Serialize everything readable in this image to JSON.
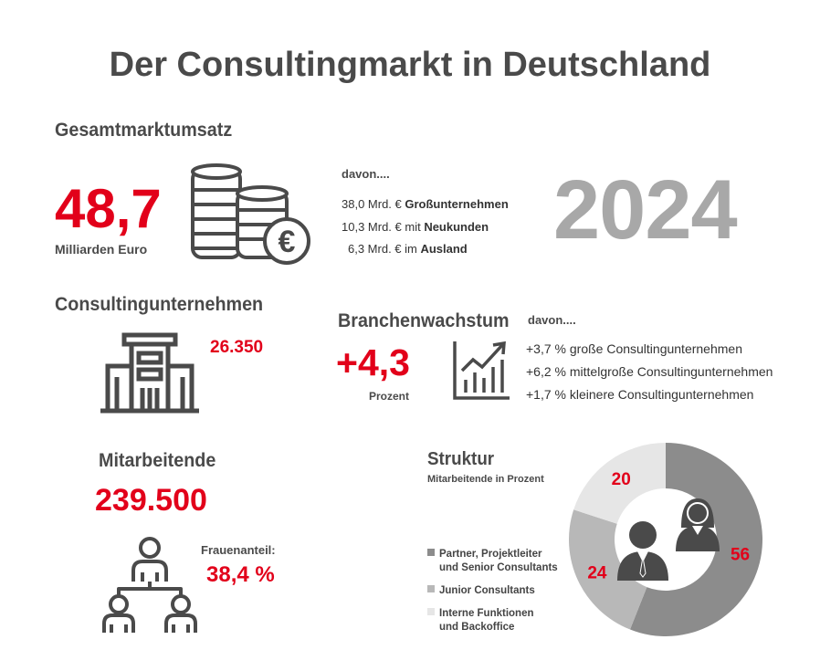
{
  "title": "Der Consultingmarkt in Deutschland",
  "colors": {
    "accent": "#e2001a",
    "text": "#4a4a4a",
    "year": "#a8a8a8",
    "donut_dark": "#8c8c8c",
    "donut_mid": "#b8b8b8",
    "donut_light": "#e6e6e6"
  },
  "market": {
    "heading": "Gesamtmarktumsatz",
    "value": "48,7",
    "unit": "Milliarden Euro",
    "icon": "coins-euro-icon",
    "breakdown_label": "davon....",
    "breakdown": [
      {
        "amount": "38,0 Mrd. € ",
        "bold": "Großunternehmen"
      },
      {
        "amount": "10,3 Mrd. € mit ",
        "bold": "Neukunden"
      },
      {
        "amount": "6,3 Mrd. € im ",
        "bold": "Ausland"
      }
    ],
    "year": "2024"
  },
  "companies": {
    "heading": "Consultingunternehmen",
    "value": "26.350",
    "icon": "building-icon"
  },
  "growth": {
    "heading": "Branchenwachstum",
    "breakdown_label": "davon....",
    "value": "+4,3",
    "unit": "Prozent",
    "icon": "growth-chart-icon",
    "items": [
      "+3,7 % große Consultingunternehmen",
      "+6,2 % mittelgroße Consultingunternehmen",
      "+1,7 % kleinere Consultingunternehmen"
    ]
  },
  "employees": {
    "heading": "Mitarbeitende",
    "value": "239.500",
    "women_label": "Frauenanteil:",
    "women_value": "38,4 %",
    "icon": "team-hierarchy-icon"
  },
  "structure": {
    "heading": "Struktur",
    "subheading": "Mitarbeitende in Prozent",
    "icon": "people-icon",
    "legend": [
      {
        "line1": "Partner, Projektleiter",
        "line2": "und Senior Consultants",
        "color": "#8c8c8c"
      },
      {
        "line1": "Junior Consultants",
        "line2": "",
        "color": "#b8b8b8"
      },
      {
        "line1": "Interne Funktionen",
        "line2": "und Backoffice",
        "color": "#e6e6e6"
      }
    ]
  },
  "chart_data": {
    "type": "pie",
    "title": "Struktur",
    "subtitle": "Mitarbeitende in Prozent",
    "categories": [
      "Partner, Projektleiter und Senior Consultants",
      "Junior Consultants",
      "Interne Funktionen und Backoffice"
    ],
    "values": [
      56,
      24,
      20
    ],
    "labels": [
      "56",
      "24",
      "20"
    ],
    "colors": [
      "#8c8c8c",
      "#b8b8b8",
      "#e6e6e6"
    ],
    "donut": true
  }
}
